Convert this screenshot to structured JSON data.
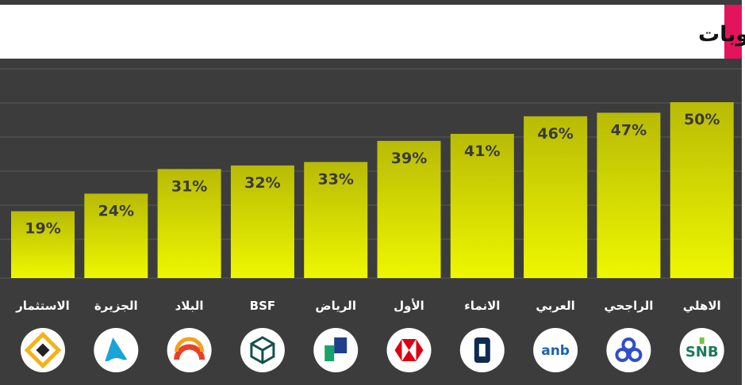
{
  "chart_data": {
    "type": "bar",
    "title": "نسبة الودائع غير المكلفة الى المطلوبات",
    "categories": [
      "الاستثمار",
      "الجزيرة",
      "البلاد",
      "BSF",
      "الرياض",
      "الأول",
      "الانماء",
      "العربي",
      "الراجحي",
      "الاهلي"
    ],
    "values": [
      19,
      24,
      31,
      32,
      33,
      39,
      41,
      46,
      47,
      50
    ],
    "value_labels": [
      "19%",
      "24%",
      "31%",
      "32%",
      "33%",
      "39%",
      "41%",
      "46%",
      "47%",
      "50%"
    ],
    "ylim": [
      0,
      50
    ],
    "grid": true,
    "legend": "none"
  },
  "logos": [
    {
      "bank": "الاستثمار",
      "icon": "saib-diamond-icon",
      "bg": "#ffffff",
      "fg": "#f2b418",
      "text": ""
    },
    {
      "bank": "الجزيرة",
      "icon": "aljazira-sail-icon",
      "bg": "#ffffff",
      "fg": "#1aa3d9",
      "text": ""
    },
    {
      "bank": "البلاد",
      "icon": "albilad-arch-icon",
      "bg": "#ffffff",
      "fg": "#e8402a",
      "text": ""
    },
    {
      "bank": "BSF",
      "icon": "bsf-cube-icon",
      "bg": "#ffffff",
      "fg": "#15524a",
      "text": ""
    },
    {
      "bank": "الرياض",
      "icon": "riyad-blocks-icon",
      "bg": "#ffffff",
      "fg": "#1e3f8a",
      "text": ""
    },
    {
      "bank": "الأول",
      "icon": "sab-hexagon-icon",
      "bg": "#ffffff",
      "fg": "#db0011",
      "text": ""
    },
    {
      "bank": "الانماء",
      "icon": "alinma-frame-icon",
      "bg": "#ffffff",
      "fg": "#0d2c4f",
      "text": ""
    },
    {
      "bank": "العربي",
      "icon": "anb-wordmark-icon",
      "bg": "#ffffff",
      "fg": "#1c62b0",
      "text": "anb"
    },
    {
      "bank": "الراجحي",
      "icon": "alrajhi-knot-icon",
      "bg": "#ffffff",
      "fg": "#2f50c8",
      "text": ""
    },
    {
      "bank": "الاهلي",
      "icon": "snb-wordmark-icon",
      "bg": "#ffffff",
      "fg": "#1a7a5c",
      "text": "SNB"
    }
  ],
  "colors": {
    "background": "#3c3c3c",
    "title_bar": "#ffffff",
    "accent": "#e3135c",
    "bar_top": "#b8bb05",
    "bar_bottom": "#eef700",
    "gridline": "#5a5a5a"
  }
}
